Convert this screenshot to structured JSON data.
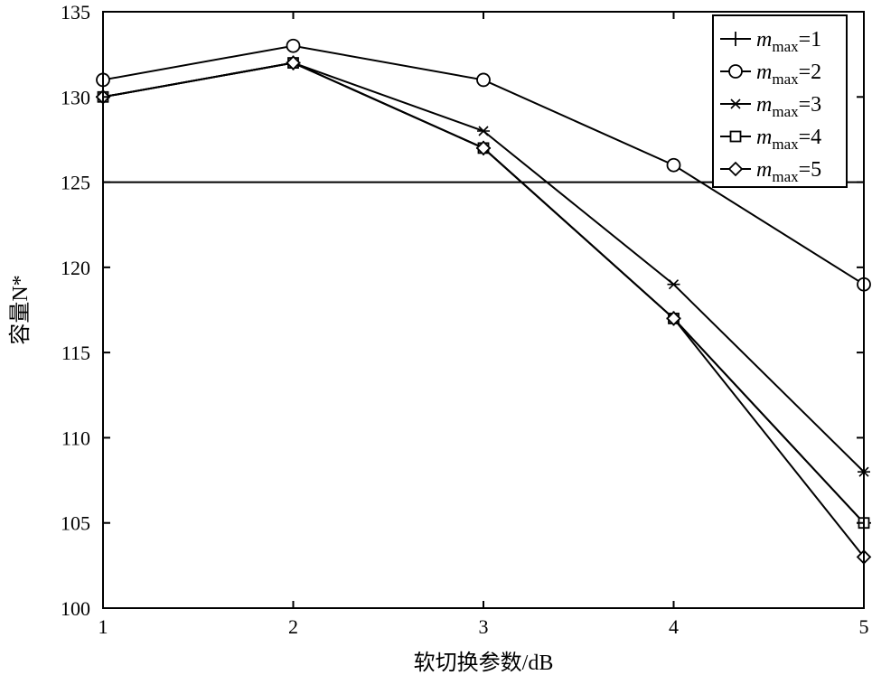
{
  "chart_data": {
    "type": "line",
    "title": "",
    "xlabel": "软切换参数/dB",
    "ylabel": "容量N*",
    "x": [
      1,
      2,
      3,
      4,
      5
    ],
    "xlim": [
      1,
      5
    ],
    "ylim": [
      100,
      135
    ],
    "x_ticks": [
      1,
      2,
      3,
      4,
      5
    ],
    "y_ticks": [
      100,
      105,
      110,
      115,
      120,
      125,
      130,
      135
    ],
    "grid": false,
    "reference_line": {
      "y": 125
    },
    "legend_position": "top-right",
    "series": [
      {
        "name": "m_max=1",
        "label_m": "m",
        "label_sub": "max",
        "label_val": "=1",
        "marker": "plus",
        "values": [
          130,
          132,
          127,
          117,
          105
        ]
      },
      {
        "name": "m_max=2",
        "label_m": "m",
        "label_sub": "max",
        "label_val": "=2",
        "marker": "circle",
        "values": [
          131,
          133,
          131,
          126,
          119
        ]
      },
      {
        "name": "m_max=3",
        "label_m": "m",
        "label_sub": "max",
        "label_val": "=3",
        "marker": "star",
        "values": [
          130,
          132,
          128,
          119,
          108
        ]
      },
      {
        "name": "m_max=4",
        "label_m": "m",
        "label_sub": "max",
        "label_val": "=4",
        "marker": "square",
        "values": [
          130,
          132,
          127,
          117,
          105
        ]
      },
      {
        "name": "m_max=5",
        "label_m": "m",
        "label_sub": "max",
        "label_val": "=5",
        "marker": "diamond",
        "values": [
          130,
          132,
          127,
          117,
          103
        ]
      }
    ]
  }
}
